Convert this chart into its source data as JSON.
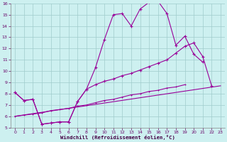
{
  "line1_x": [
    0,
    1,
    2,
    3,
    4,
    5,
    6,
    7,
    8,
    9,
    10,
    11,
    12,
    13,
    14,
    15,
    16,
    17,
    18,
    19,
    20,
    21,
    22,
    23
  ],
  "line1_y": [
    8.1,
    7.4,
    7.5,
    5.3,
    5.4,
    5.5,
    5.5,
    7.3,
    8.4,
    10.3,
    12.8,
    15.0,
    15.1,
    14.0,
    15.5,
    16.1,
    16.2,
    15.1,
    12.3,
    13.1,
    11.5,
    10.8,
    null,
    null
  ],
  "line2_x": [
    0,
    1,
    2,
    3,
    4,
    5,
    6,
    7,
    8,
    9,
    10,
    11,
    12,
    13,
    14,
    15,
    16,
    17,
    18,
    19,
    20,
    21,
    22,
    23
  ],
  "line2_y": [
    8.1,
    7.4,
    7.5,
    5.3,
    5.4,
    5.5,
    5.5,
    7.3,
    8.4,
    8.8,
    9.1,
    9.3,
    9.6,
    9.8,
    10.1,
    10.4,
    10.7,
    11.0,
    11.6,
    12.2,
    12.5,
    11.3,
    8.7,
    null
  ],
  "line3_x": [
    0,
    23
  ],
  "line3_y": [
    6.0,
    8.7
  ],
  "line4_x": [
    0,
    1,
    2,
    3,
    4,
    5,
    6,
    7,
    8,
    9,
    10,
    11,
    12,
    13,
    14,
    15,
    16,
    17,
    18,
    19,
    20,
    21,
    22,
    23
  ],
  "line4_y": [
    6.0,
    6.1,
    6.2,
    6.3,
    6.5,
    6.6,
    6.7,
    6.9,
    7.0,
    7.2,
    7.4,
    7.5,
    7.7,
    7.9,
    8.0,
    8.2,
    8.3,
    8.5,
    8.6,
    8.8,
    null,
    null,
    null,
    null
  ],
  "line_color": "#990099",
  "bg_color": "#cdf0f0",
  "grid_color": "#a0cccc",
  "xlabel": "Windchill (Refroidissement éolien,°C)",
  "xlim": [
    0,
    23
  ],
  "ylim": [
    5,
    16
  ],
  "yticks": [
    5,
    6,
    7,
    8,
    9,
    10,
    11,
    12,
    13,
    14,
    15,
    16
  ],
  "xticks": [
    0,
    1,
    2,
    3,
    4,
    5,
    6,
    7,
    8,
    9,
    10,
    11,
    12,
    13,
    14,
    15,
    16,
    17,
    18,
    19,
    20,
    21,
    22,
    23
  ],
  "marker_size": 3,
  "line_width": 0.8
}
